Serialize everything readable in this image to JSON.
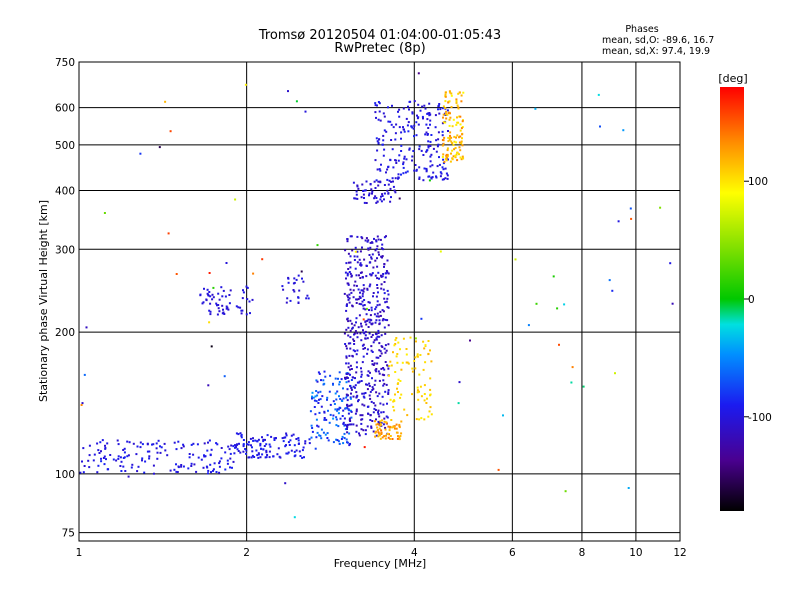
{
  "chart_data": {
    "type": "scatter",
    "title": "Tromsø 20120504 01:04:00-01:05:43",
    "subtitle": "RwPretec (8p)",
    "xlabel": "Frequency [MHz]",
    "ylabel": "Stationary phase Virtual Height [km]",
    "x_scale": "log",
    "y_scale": "log",
    "xlim": [
      1,
      12
    ],
    "ylim": [
      72,
      750
    ],
    "x_ticks": [
      1,
      2,
      4,
      6,
      8,
      10,
      12
    ],
    "y_ticks": [
      75,
      100,
      200,
      300,
      400,
      500,
      600,
      750
    ],
    "grid": true,
    "legend": {
      "title": "Phases",
      "lines": [
        "mean, sd,O: -89.6, 16.7",
        "mean, sd,X:  97.4, 19.9"
      ],
      "placement": "top-right"
    },
    "colorbar": {
      "label": "[deg]",
      "range": [
        -180,
        180
      ],
      "ticks": [
        -100,
        0,
        100
      ],
      "colormap": "rainbow"
    },
    "clusters": [
      {
        "x": [
          1.0,
          1.9
        ],
        "y": [
          100,
          118
        ],
        "n": 160,
        "phase": [
          -110,
          -85
        ]
      },
      {
        "x": [
          1.9,
          2.6
        ],
        "y": [
          108,
          122
        ],
        "n": 120,
        "phase": [
          -105,
          -85
        ]
      },
      {
        "x": [
          2.6,
          3.1
        ],
        "y": [
          113,
          165
        ],
        "n": 140,
        "phase": [
          -100,
          -40
        ]
      },
      {
        "x": [
          3.0,
          3.6
        ],
        "y": [
          120,
          320
        ],
        "n": 500,
        "phase": [
          -125,
          -95
        ]
      },
      {
        "x": [
          3.4,
          3.8
        ],
        "y": [
          118,
          130
        ],
        "n": 60,
        "phase": [
          110,
          150
        ]
      },
      {
        "x": [
          3.6,
          4.3
        ],
        "y": [
          130,
          195
        ],
        "n": 90,
        "phase": [
          95,
          120
        ]
      },
      {
        "x": [
          1.65,
          2.05
        ],
        "y": [
          218,
          250
        ],
        "n": 60,
        "phase": [
          -110,
          -95
        ]
      },
      {
        "x": [
          2.3,
          2.6
        ],
        "y": [
          230,
          265
        ],
        "n": 25,
        "phase": [
          -110,
          -90
        ]
      },
      {
        "x": [
          3.1,
          3.7
        ],
        "y": [
          375,
          420
        ],
        "n": 60,
        "phase": [
          -115,
          -95
        ]
      },
      {
        "x": [
          3.4,
          4.6
        ],
        "y": [
          420,
          620
        ],
        "n": 220,
        "phase": [
          -110,
          -85
        ]
      },
      {
        "x": [
          4.5,
          4.9
        ],
        "y": [
          460,
          650
        ],
        "n": 120,
        "phase": [
          90,
          140
        ]
      },
      {
        "x": [
          1.0,
          11.9
        ],
        "y": [
          80,
          720
        ],
        "n": 70,
        "phase": [
          -180,
          180
        ]
      }
    ]
  }
}
